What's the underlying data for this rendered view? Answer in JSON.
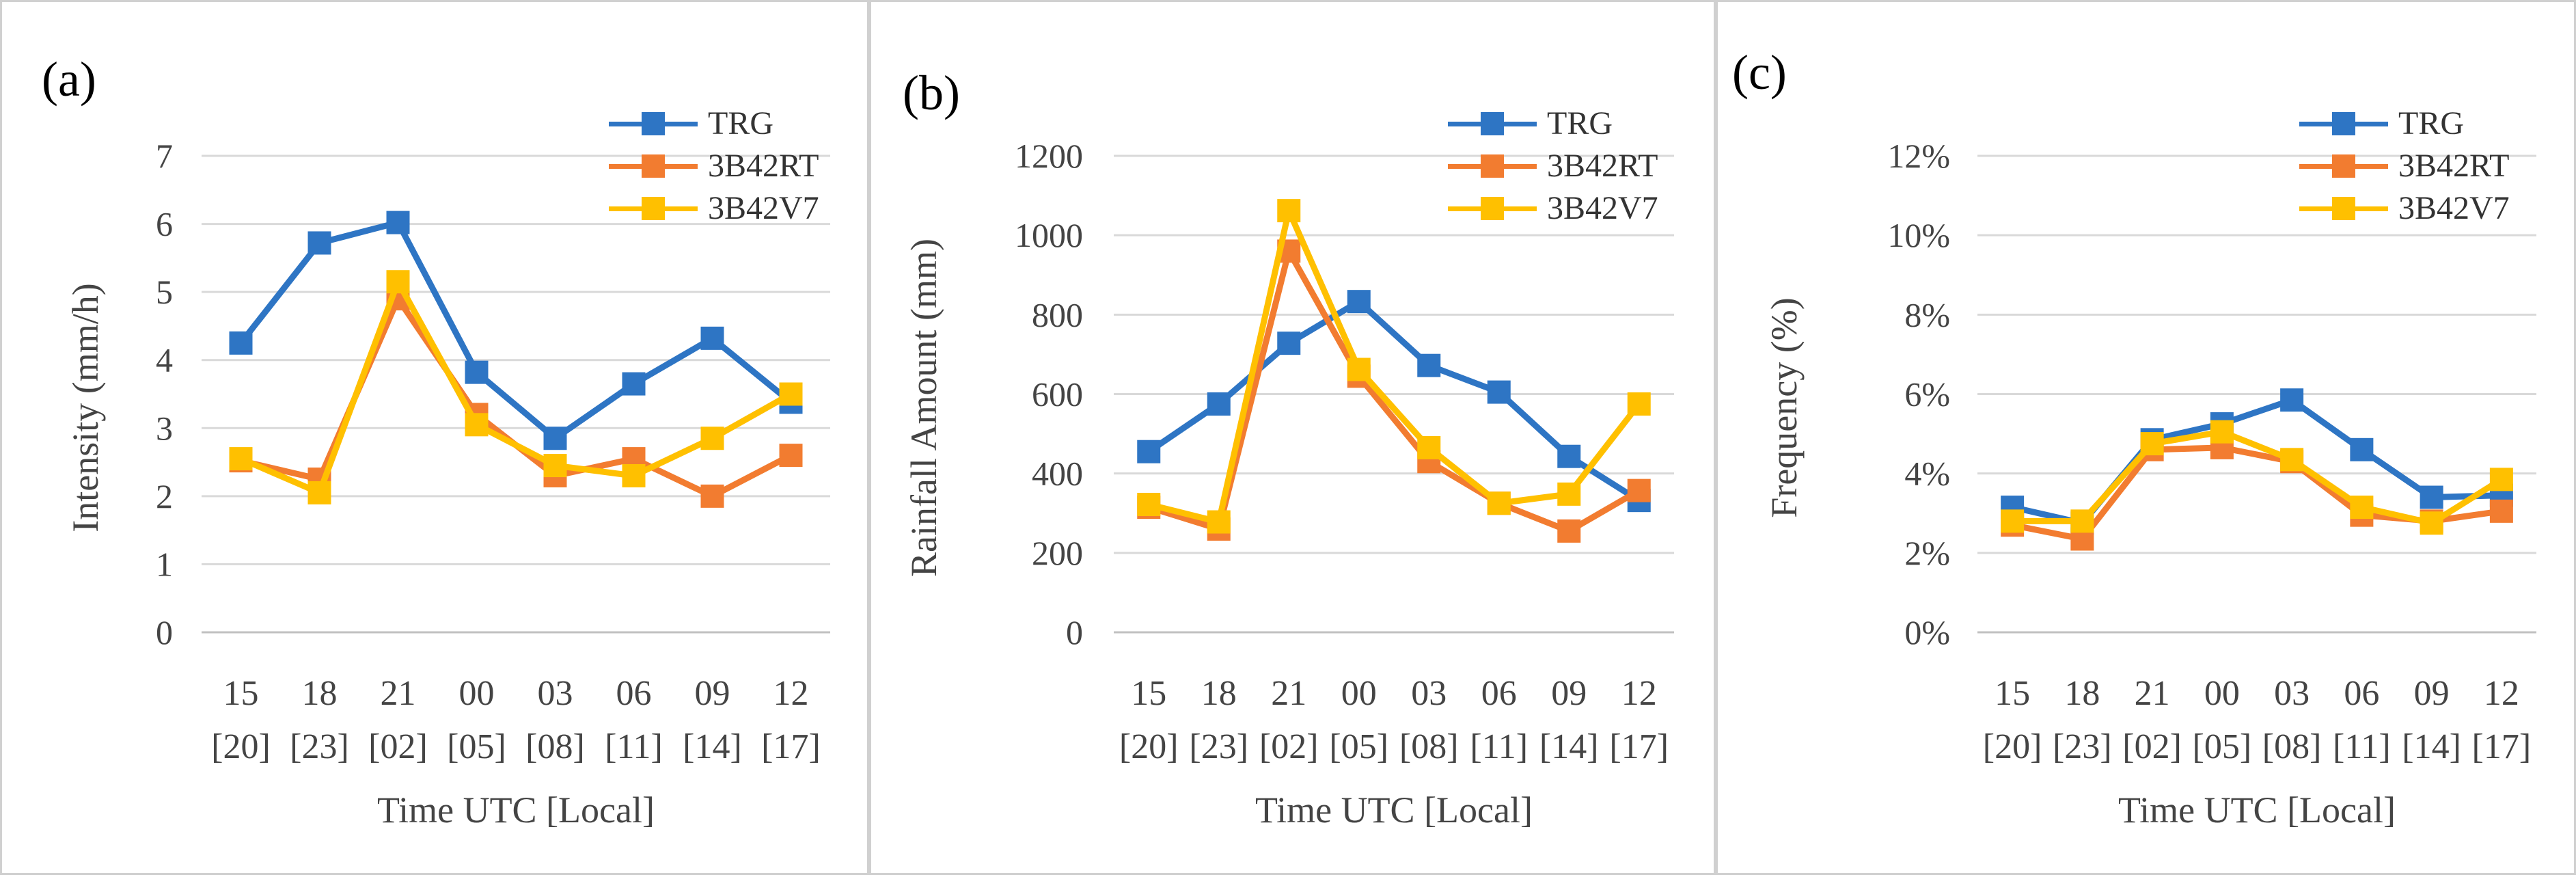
{
  "colors": {
    "TRG": "#2e75c4",
    "3B42RT": "#f27c30",
    "3B42V7": "#ffc000",
    "grid": "#d9d9d9",
    "axis": "#c0c0c0"
  },
  "chart_data": [
    {
      "type": "line",
      "panel_label": "(a)",
      "categories": [
        "15",
        "18",
        "21",
        "00",
        "03",
        "06",
        "09",
        "12"
      ],
      "categories_local": [
        "[20]",
        "[23]",
        "[02]",
        "[05]",
        "[08]",
        "[11]",
        "[14]",
        "[17]"
      ],
      "xlabel": "Time UTC [Local]",
      "ylabel": "Intensity (mm/h)",
      "ylim": [
        0,
        7
      ],
      "yticks": [
        "0",
        "1",
        "2",
        "3",
        "4",
        "5",
        "6",
        "7"
      ],
      "series": [
        {
          "name": "TRG",
          "values": [
            4.25,
            5.72,
            6.02,
            3.82,
            2.85,
            3.65,
            4.32,
            3.38
          ]
        },
        {
          "name": "3B42RT",
          "values": [
            2.52,
            2.25,
            4.9,
            3.2,
            2.3,
            2.55,
            2.0,
            2.6
          ]
        },
        {
          "name": "3B42V7",
          "values": [
            2.55,
            2.05,
            5.15,
            3.05,
            2.45,
            2.3,
            2.85,
            3.5
          ]
        }
      ]
    },
    {
      "type": "line",
      "panel_label": "(b)",
      "categories": [
        "15",
        "18",
        "21",
        "00",
        "03",
        "06",
        "09",
        "12"
      ],
      "categories_local": [
        "[20]",
        "[23]",
        "[02]",
        "[05]",
        "[08]",
        "[11]",
        "[14]",
        "[17]"
      ],
      "xlabel": "Time UTC [Local]",
      "ylabel": "Rainfall Amount (mm)",
      "ylim": [
        0,
        1200
      ],
      "yticks": [
        "0",
        "200",
        "400",
        "600",
        "800",
        "1000",
        "1200"
      ],
      "series": [
        {
          "name": "TRG",
          "values": [
            455,
            575,
            728,
            833,
            672,
            605,
            443,
            332
          ]
        },
        {
          "name": "3B42RT",
          "values": [
            315,
            260,
            960,
            645,
            430,
            325,
            255,
            357
          ]
        },
        {
          "name": "3B42V7",
          "values": [
            322,
            278,
            1062,
            662,
            465,
            325,
            348,
            575
          ]
        }
      ]
    },
    {
      "type": "line",
      "panel_label": "(c)",
      "categories": [
        "15",
        "18",
        "21",
        "00",
        "03",
        "06",
        "09",
        "12"
      ],
      "categories_local": [
        "[20]",
        "[23]",
        "[02]",
        "[05]",
        "[08]",
        "[11]",
        "[14]",
        "[17]"
      ],
      "xlabel": "Time UTC [Local]",
      "ylabel": "Frequency (%)",
      "ylim": [
        0,
        12
      ],
      "yticks": [
        "0%",
        "2%",
        "4%",
        "6%",
        "8%",
        "10%",
        "12%"
      ],
      "series": [
        {
          "name": "TRG",
          "values": [
            3.15,
            2.75,
            4.85,
            5.25,
            5.85,
            4.6,
            3.4,
            3.45
          ]
        },
        {
          "name": "3B42RT",
          "values": [
            2.7,
            2.35,
            4.6,
            4.65,
            4.3,
            2.95,
            2.8,
            3.05
          ]
        },
        {
          "name": "3B42V7",
          "values": [
            2.8,
            2.8,
            4.75,
            5.05,
            4.35,
            3.15,
            2.75,
            3.85
          ]
        }
      ]
    }
  ]
}
